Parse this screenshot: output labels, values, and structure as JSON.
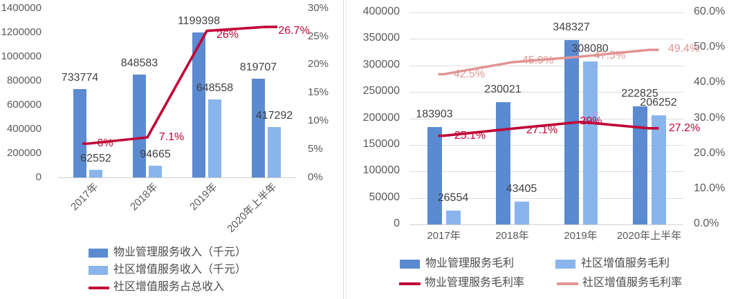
{
  "colors": {
    "bar_dark_blue": "#5b8ad1",
    "bar_light_blue": "#8ab5ec",
    "line_crimson": "#c00034",
    "line_pink": "#e09493",
    "axis_text": "#595959",
    "value_text": "#3f3f3f",
    "gridline": "#dcdcdc",
    "divider": "#d9d9d9"
  },
  "chart_data": [
    {
      "type": "bar",
      "subtype": "combo-bar-line",
      "title": "",
      "categories": [
        "2017年",
        "2018年",
        "2019年",
        "2020年上半年"
      ],
      "bar_series": [
        {
          "name": "物业管理服务收入（千元）",
          "color": "#5b8ad1",
          "values": [
            733774,
            848583,
            1199398,
            819707
          ],
          "labels": [
            "733774",
            "848583",
            "1199398",
            "819707"
          ]
        },
        {
          "name": "社区增值服务收入（千元）",
          "color": "#8ab5ec",
          "values": [
            62552,
            94665,
            648558,
            417292
          ],
          "labels": [
            "62552",
            "94665",
            "648558",
            "417292"
          ]
        }
      ],
      "line_series": [
        {
          "name": "社区增值服务占总收入",
          "color": "#c00034",
          "values": [
            6,
            7.1,
            26,
            26.7
          ],
          "labels": [
            "6%",
            "7.1%",
            "26%",
            "26.7%"
          ]
        }
      ],
      "y_left": {
        "min": 0,
        "max": 1400000,
        "ticks": [
          "1400000",
          "1200000",
          "1000000",
          "800000",
          "600000",
          "400000",
          "200000",
          "0"
        ]
      },
      "y_right": {
        "min": 0,
        "max": 30,
        "ticks": [
          "30%",
          "25%",
          "20%",
          "15%",
          "10%",
          "5%",
          "0%"
        ]
      },
      "gridlines": false,
      "x_labels_rotated": true,
      "legend_position": "bottom-left-stacked"
    },
    {
      "type": "bar",
      "subtype": "combo-bar-line",
      "title": "",
      "categories": [
        "2017年",
        "2018年",
        "2019年",
        "2020年上半年"
      ],
      "bar_series": [
        {
          "name": "物业管理服务毛利",
          "color": "#5b8ad1",
          "values": [
            183903,
            230021,
            348327,
            222825
          ],
          "labels": [
            "183903",
            "230021",
            "348327",
            "222825"
          ]
        },
        {
          "name": "社区增值服务毛利",
          "color": "#8ab5ec",
          "values": [
            26554,
            43405,
            308080,
            206252
          ],
          "labels": [
            "26554",
            "43405",
            "308080",
            "206252"
          ]
        }
      ],
      "line_series": [
        {
          "name": "物业管理服务毛利率",
          "color": "#c00034",
          "values": [
            25.1,
            27.1,
            29,
            27.2
          ],
          "labels": [
            "25.1%",
            "27.1%",
            "29%",
            "27.2%"
          ]
        },
        {
          "name": "社区增值服务毛利率",
          "color": "#e09493",
          "values": [
            42.5,
            45.9,
            47.5,
            49.4
          ],
          "labels": [
            "42.5%",
            "45.9%",
            "47.5%",
            "49.4%"
          ]
        }
      ],
      "y_left": {
        "min": 0,
        "max": 400000,
        "ticks": [
          "400000",
          "350000",
          "300000",
          "250000",
          "200000",
          "150000",
          "100000",
          "50000",
          "0"
        ]
      },
      "y_right": {
        "min": 0,
        "max": 60,
        "ticks": [
          "60.0%",
          "50.0%",
          "40.0%",
          "30.0%",
          "20.0%",
          "10.0%",
          "0.0%"
        ]
      },
      "gridlines": true,
      "x_labels_rotated": false,
      "legend_position": "bottom-two-column"
    }
  ]
}
